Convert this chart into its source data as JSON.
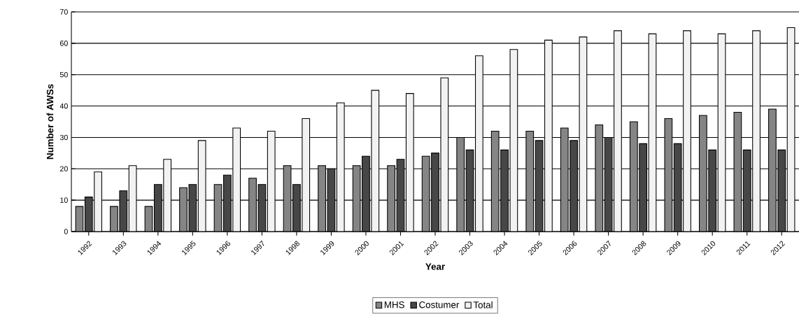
{
  "chart_data": {
    "type": "bar",
    "xlabel": "Year",
    "ylabel": "Number of AWSs",
    "categories": [
      "1992",
      "1993",
      "1994",
      "1995",
      "1996",
      "1997",
      "1998",
      "1999",
      "2000",
      "2001",
      "2002",
      "2003",
      "2004",
      "2005",
      "2006",
      "2007",
      "2008",
      "2009",
      "2010",
      "2011",
      "2012"
    ],
    "series": [
      {
        "name": "MHS",
        "color": "#858585",
        "values": [
          8,
          8,
          8,
          14,
          15,
          17,
          21,
          21,
          21,
          21,
          24,
          30,
          32,
          32,
          33,
          34,
          35,
          36,
          37,
          38,
          39
        ]
      },
      {
        "name": "Costumer",
        "color": "#474747",
        "values": [
          11,
          13,
          15,
          15,
          18,
          15,
          15,
          20,
          24,
          23,
          25,
          26,
          26,
          29,
          29,
          30,
          28,
          28,
          26,
          26,
          26
        ]
      },
      {
        "name": "Total",
        "color": "#f2f2f2",
        "values": [
          19,
          21,
          23,
          29,
          33,
          32,
          36,
          41,
          45,
          44,
          49,
          56,
          58,
          61,
          62,
          64,
          63,
          64,
          63,
          64,
          65
        ]
      }
    ],
    "ylim": [
      0,
      70
    ],
    "yticks": [
      0,
      10,
      20,
      30,
      40,
      50,
      60,
      70
    ],
    "grid": "y",
    "legend": "bottom"
  }
}
